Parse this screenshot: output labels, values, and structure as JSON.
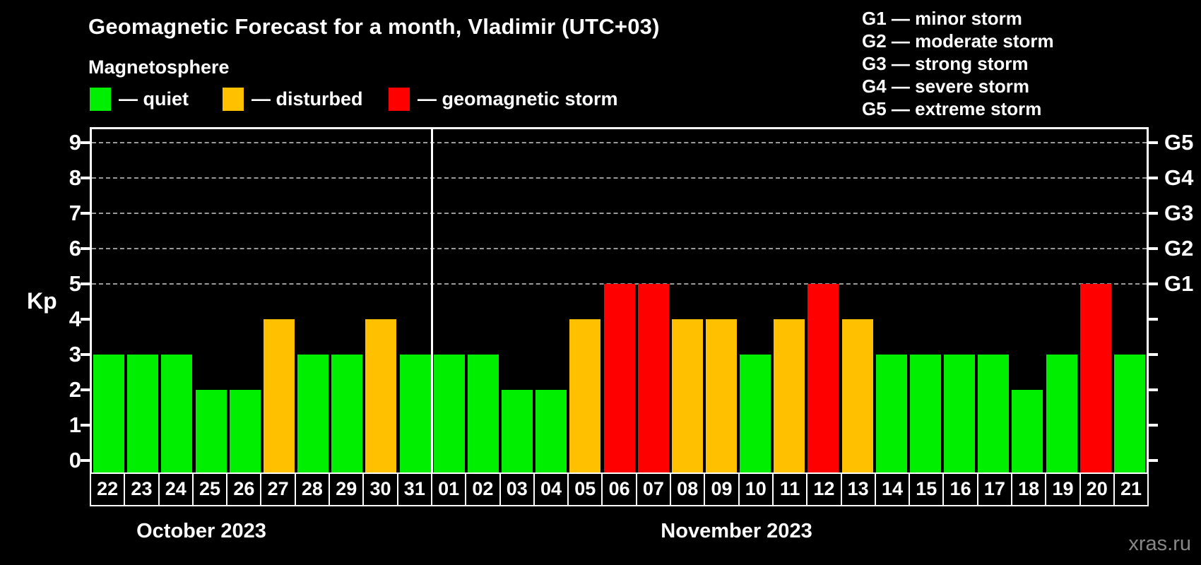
{
  "title": "Geomagnetic Forecast for a month, Vladimir (UTC+03)",
  "subtitle": "Magnetosphere",
  "legend": [
    {
      "key": "quiet",
      "label": "— quiet"
    },
    {
      "key": "disturbed",
      "label": "— disturbed"
    },
    {
      "key": "storm",
      "label": "— geomagnetic storm"
    }
  ],
  "storm_scale_legend": [
    "G1 — minor storm",
    "G2 — moderate storm",
    "G3 — strong storm",
    "G4 — severe storm",
    "G5 — extreme storm"
  ],
  "colors": {
    "quiet": "#00ee00",
    "disturbed": "#ffc000",
    "storm": "#ff0000",
    "background": "#000000",
    "grid": "#9a9a9a",
    "frame": "#ffffff",
    "watermark": "#878787"
  },
  "y_axis": {
    "label": "Kp",
    "ticks": [
      "0",
      "1",
      "2",
      "3",
      "4",
      "5",
      "6",
      "7",
      "8",
      "9"
    ]
  },
  "right_axis_labels": [
    {
      "kp": 5,
      "label": "G1"
    },
    {
      "kp": 6,
      "label": "G2"
    },
    {
      "kp": 7,
      "label": "G3"
    },
    {
      "kp": 8,
      "label": "G4"
    },
    {
      "kp": 9,
      "label": "G5"
    }
  ],
  "watermark": "xras.ru",
  "chart_data": {
    "type": "bar",
    "title": "Geomagnetic Forecast for a month, Vladimir (UTC+03)",
    "ylabel": "Kp",
    "ylim": [
      0,
      9
    ],
    "gridlines_at": [
      5,
      6,
      7,
      8,
      9
    ],
    "legend_position": "top",
    "months": [
      {
        "label": "October 2023",
        "days": [
          {
            "day": "22",
            "kp": 3,
            "status": "quiet"
          },
          {
            "day": "23",
            "kp": 3,
            "status": "quiet"
          },
          {
            "day": "24",
            "kp": 3,
            "status": "quiet"
          },
          {
            "day": "25",
            "kp": 2,
            "status": "quiet"
          },
          {
            "day": "26",
            "kp": 2,
            "status": "quiet"
          },
          {
            "day": "27",
            "kp": 4,
            "status": "disturbed"
          },
          {
            "day": "28",
            "kp": 3,
            "status": "quiet"
          },
          {
            "day": "29",
            "kp": 3,
            "status": "quiet"
          },
          {
            "day": "30",
            "kp": 4,
            "status": "disturbed"
          },
          {
            "day": "31",
            "kp": 3,
            "status": "quiet"
          }
        ]
      },
      {
        "label": "November 2023",
        "days": [
          {
            "day": "01",
            "kp": 3,
            "status": "quiet"
          },
          {
            "day": "02",
            "kp": 3,
            "status": "quiet"
          },
          {
            "day": "03",
            "kp": 2,
            "status": "quiet"
          },
          {
            "day": "04",
            "kp": 2,
            "status": "quiet"
          },
          {
            "day": "05",
            "kp": 4,
            "status": "disturbed"
          },
          {
            "day": "06",
            "kp": 5,
            "status": "storm"
          },
          {
            "day": "07",
            "kp": 5,
            "status": "storm"
          },
          {
            "day": "08",
            "kp": 4,
            "status": "disturbed"
          },
          {
            "day": "09",
            "kp": 4,
            "status": "disturbed"
          },
          {
            "day": "10",
            "kp": 3,
            "status": "quiet"
          },
          {
            "day": "11",
            "kp": 4,
            "status": "disturbed"
          },
          {
            "day": "12",
            "kp": 5,
            "status": "storm"
          },
          {
            "day": "13",
            "kp": 4,
            "status": "disturbed"
          },
          {
            "day": "14",
            "kp": 3,
            "status": "quiet"
          },
          {
            "day": "15",
            "kp": 3,
            "status": "quiet"
          },
          {
            "day": "16",
            "kp": 3,
            "status": "quiet"
          },
          {
            "day": "17",
            "kp": 3,
            "status": "quiet"
          },
          {
            "day": "18",
            "kp": 2,
            "status": "quiet"
          },
          {
            "day": "19",
            "kp": 3,
            "status": "quiet"
          },
          {
            "day": "20",
            "kp": 5,
            "status": "storm"
          },
          {
            "day": "21",
            "kp": 3,
            "status": "quiet"
          }
        ]
      }
    ]
  }
}
